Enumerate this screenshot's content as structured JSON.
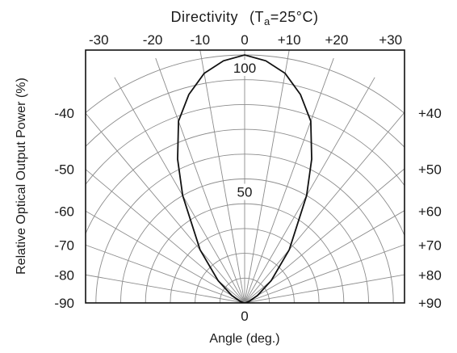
{
  "chart_data": {
    "type": "polar-directivity",
    "title_prefix": "Directivity",
    "title_paren_open": "(",
    "title_T": "T",
    "title_sub": "a",
    "title_rest": "=25°C)",
    "xlabel": "Angle (deg.)",
    "ylabel": "Relative Optical Output Power (%)",
    "top_ticks": [
      "-30",
      "-20",
      "-10",
      "0",
      "+10",
      "+20",
      "+30"
    ],
    "top_tick_angles": [
      -30,
      -20,
      -10,
      0,
      10,
      20,
      30
    ],
    "left_ticks": [
      "-40",
      "-50",
      "-60",
      "-70",
      "-80",
      "-90"
    ],
    "right_ticks": [
      "+40",
      "+50",
      "+60",
      "+70",
      "+80",
      "+90"
    ],
    "side_tick_angles": [
      40,
      50,
      60,
      70,
      80,
      90
    ],
    "bottom_tick": "0",
    "radial_labels": [
      "100",
      "50"
    ],
    "radial_label_values": [
      100,
      50
    ],
    "radial_max": 100,
    "angle_range": [
      -90,
      90
    ],
    "curve": {
      "angles": [
        0,
        5,
        10,
        15,
        20,
        25,
        30,
        40,
        50,
        60,
        70,
        80,
        90
      ],
      "values": [
        100,
        98,
        94,
        87,
        78,
        64,
        50,
        28,
        14,
        6,
        2,
        0.5,
        0
      ]
    }
  }
}
